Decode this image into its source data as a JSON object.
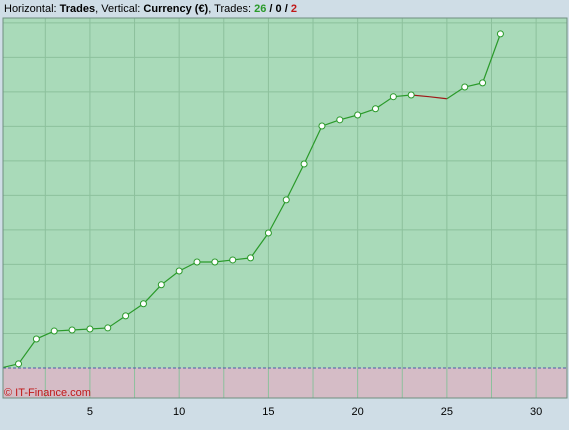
{
  "chart_data": {
    "type": "line",
    "header": {
      "parts": [
        "Horizontal:",
        "Trades",
        ", Vertical:",
        "Currency (€)",
        ", Trades:"
      ],
      "won": 26,
      "even": 0,
      "lost": 2,
      "separator": "/"
    },
    "watermark": "© IT-Finance.com",
    "x": [
      0,
      1,
      2,
      3,
      4,
      5,
      6,
      7,
      8,
      9,
      10,
      11,
      12,
      13,
      14,
      15,
      16,
      17,
      18,
      19,
      20,
      21,
      22,
      23,
      24,
      25,
      26,
      27,
      28
    ],
    "values": [
      0,
      0.12,
      0.84,
      1.07,
      1.1,
      1.13,
      1.16,
      1.51,
      1.86,
      2.41,
      2.81,
      3.07,
      3.07,
      3.13,
      3.19,
      3.91,
      4.87,
      5.91,
      7.01,
      7.19,
      7.33,
      7.51,
      7.86,
      7.91,
      7.86,
      7.8,
      8.14,
      8.26,
      9.68
    ],
    "loss_trades": [
      24,
      25
    ],
    "win_color": "#2a9a2a",
    "loss_color": "#a01818",
    "xlim": [
      0.13,
      31.73
    ],
    "ylim": [
      -0.87,
      10.14
    ],
    "xticks": [
      5,
      10,
      15,
      20,
      25,
      30
    ],
    "xgrid": [
      2.5,
      5,
      7.5,
      10,
      12.5,
      15,
      17.5,
      20,
      22.5,
      25,
      27.5,
      30
    ],
    "ygrid": [
      1,
      2,
      3,
      4,
      5,
      6,
      7,
      8,
      9,
      10
    ],
    "positive_fill": "#a9dab9",
    "negative_fill": "#d5bcc6",
    "grid_color": "#8cc09c"
  }
}
